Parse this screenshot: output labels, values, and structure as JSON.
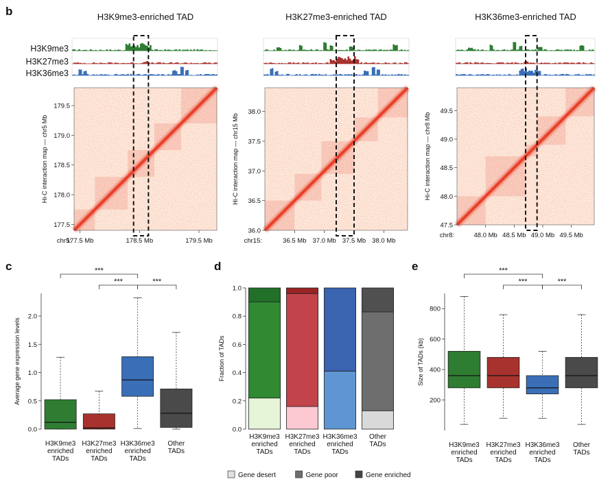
{
  "panel_letters": {
    "b": "b",
    "c": "c",
    "d": "d",
    "e": "e"
  },
  "colors": {
    "h3k9": "#2e7d32",
    "h3k27": "#a8322d",
    "h3k36": "#3a6fb7",
    "other": "#4a4a4a",
    "hic": "#e8402a",
    "hic_bg": "#fdf2e6"
  },
  "chart_data": [
    {
      "panel": "b1",
      "type": "heatmap",
      "title": "H3K9me3-enriched TAD",
      "track_labels": [
        "H3K9me3",
        "H3K27me3",
        "H3K36me3"
      ],
      "ylabel": "Hi-C interaction map — chr5 Mb",
      "chrom_label": "chr5:",
      "x_ticks": [
        "177.5 Mb",
        "178.5 Mb",
        "179.5 Mb"
      ],
      "y_ticks": [
        "179.5",
        "179.0",
        "178.5",
        "178.0",
        "177.5"
      ],
      "axis_range": [
        177.4,
        179.8
      ],
      "highlight_range": [
        178.4,
        178.65
      ],
      "domains": [
        [
          177.4,
          177.75
        ],
        [
          177.75,
          178.3
        ],
        [
          178.3,
          178.75
        ],
        [
          178.75,
          179.2
        ],
        [
          179.2,
          179.8
        ]
      ]
    },
    {
      "panel": "b2",
      "type": "heatmap",
      "title": "H3K27me3-enriched TAD",
      "ylabel": "Hi-C interaction map — chr15 Mb",
      "chrom_label": "chr15:",
      "x_ticks": [
        "36.5 Mb",
        "37.0 Mb",
        "37.5 Mb",
        "38.0 Mb"
      ],
      "y_ticks": [
        "38.0",
        "37.5",
        "37.0",
        "36.5",
        "36.0"
      ],
      "axis_range": [
        36.0,
        38.4
      ],
      "highlight_range": [
        37.2,
        37.5
      ],
      "domains": [
        [
          36.0,
          36.5
        ],
        [
          36.5,
          36.95
        ],
        [
          36.95,
          37.5
        ],
        [
          37.5,
          37.9
        ],
        [
          37.9,
          38.4
        ]
      ]
    },
    {
      "panel": "b3",
      "type": "heatmap",
      "title": "H3K36me3-enriched TAD",
      "ylabel": "Hi-C interaction map — chr8 Mb",
      "chrom_label": "chr8:",
      "x_ticks": [
        "48.0 Mb",
        "48.5 Mb",
        "49.0 Mb",
        "49.5 Mb"
      ],
      "y_ticks": [
        "49.5",
        "49.0",
        "48.5",
        "48.0",
        "47.5"
      ],
      "axis_range": [
        47.5,
        49.9
      ],
      "highlight_range": [
        48.7,
        48.9
      ],
      "domains": [
        [
          47.5,
          48.0
        ],
        [
          48.0,
          48.7
        ],
        [
          48.7,
          48.9
        ],
        [
          48.9,
          49.4
        ],
        [
          49.4,
          49.9
        ]
      ]
    },
    {
      "panel": "c",
      "type": "box",
      "ylabel": "Average gene expression levels",
      "ylim": [
        0,
        2.4
      ],
      "yticks": [
        0.0,
        0.5,
        1.0,
        1.5,
        2.0
      ],
      "categories": [
        "H3K9me3\nenriched\nTADs",
        "H3K27me3\nenriched\nTADs",
        "H3K36me3\nenriched\nTADs",
        "Other\nTADs"
      ],
      "boxes": [
        {
          "min": 0.0,
          "q1": 0.0,
          "median": 0.12,
          "q3": 0.52,
          "max": 1.27
        },
        {
          "min": 0.0,
          "q1": 0.0,
          "median": 0.02,
          "q3": 0.27,
          "max": 0.67
        },
        {
          "min": 0.01,
          "q1": 0.58,
          "median": 0.87,
          "q3": 1.28,
          "max": 2.32
        },
        {
          "min": 0.0,
          "q1": 0.03,
          "median": 0.28,
          "q3": 0.71,
          "max": 1.71
        }
      ],
      "significance": [
        {
          "from": 0,
          "to": 2,
          "label": "***"
        },
        {
          "from": 1,
          "to": 2,
          "label": "***"
        },
        {
          "from": 2,
          "to": 3,
          "label": "***"
        }
      ]
    },
    {
      "panel": "d",
      "type": "bar",
      "ylabel": "Fraction of TADs",
      "ylim": [
        0,
        1.0
      ],
      "yticks": [
        0.0,
        0.2,
        0.4,
        0.6,
        0.8,
        1.0
      ],
      "categories": [
        "H3K9me3\nenriched\nTADs",
        "H3K27me3\nenriched\nTADs",
        "H3K36me3\nenriched\nTADs",
        "Other\nTADs"
      ],
      "series": [
        {
          "name": "Gene desert",
          "values": [
            0.22,
            0.16,
            0.41,
            0.13
          ]
        },
        {
          "name": "Gene poor",
          "values": [
            0.68,
            0.8,
            0.59,
            0.7
          ]
        },
        {
          "name": "Gene enriched",
          "values": [
            0.1,
            0.04,
            0.0,
            0.17
          ]
        }
      ],
      "segment_colors": [
        [
          "#e6f5d8",
          "#2f8a32",
          "#21702a"
        ],
        [
          "#fcc8d2",
          "#c3434a",
          "#9a2424"
        ],
        [
          "#5f95d2",
          "#3a63b0",
          "#3a63b0"
        ],
        [
          "#d9d9d9",
          "#6e6e6e",
          "#505050"
        ]
      ],
      "legend": [
        {
          "label": "Gene desert",
          "color": "#e0e0e0"
        },
        {
          "label": "Gene poor",
          "color": "#6e6e6e"
        },
        {
          "label": "Gene enriched",
          "color": "#444444"
        }
      ]
    },
    {
      "panel": "e",
      "type": "box",
      "ylabel": "Size of TADs (kb)",
      "ylim": [
        0,
        900
      ],
      "yticks": [
        200,
        400,
        600,
        800
      ],
      "categories": [
        "H3K9me3\nenriched\nTADs",
        "H3K27me3\nenriched\nTADs",
        "H3K36me3\nenriched\nTADs",
        "Other\nTADs"
      ],
      "boxes": [
        {
          "min": 40,
          "q1": 280,
          "median": 360,
          "q3": 520,
          "max": 880
        },
        {
          "min": 80,
          "q1": 280,
          "median": 360,
          "q3": 480,
          "max": 760
        },
        {
          "min": 80,
          "q1": 240,
          "median": 280,
          "q3": 360,
          "max": 520
        },
        {
          "min": 40,
          "q1": 280,
          "median": 360,
          "q3": 480,
          "max": 760
        }
      ],
      "significance": [
        {
          "from": 0,
          "to": 2,
          "label": "***"
        },
        {
          "from": 1,
          "to": 2,
          "label": "***"
        },
        {
          "from": 2,
          "to": 3,
          "label": "***"
        }
      ]
    }
  ]
}
